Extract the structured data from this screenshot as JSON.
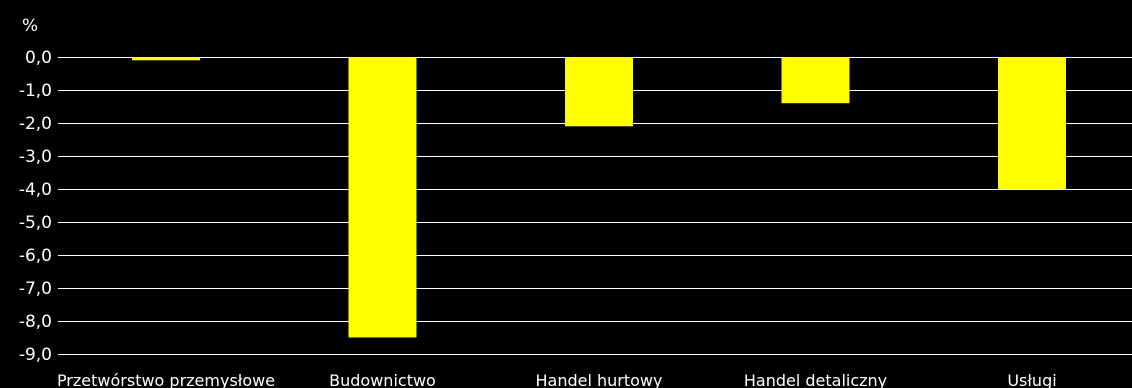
{
  "chart_data": {
    "type": "bar",
    "title": "",
    "xlabel": "",
    "ylabel": "%",
    "ylim": [
      -9.0,
      0.0
    ],
    "yticks": [
      "0,0",
      "-1,0",
      "-2,0",
      "-3,0",
      "-4,0",
      "-5,0",
      "-6,0",
      "-7,0",
      "-8,0",
      "-9,0"
    ],
    "ytick_values": [
      0,
      -1,
      -2,
      -3,
      -4,
      -5,
      -6,
      -7,
      -8,
      -9
    ],
    "categories": [
      "Przetwórstwo przemysłowe",
      "Budownictwo",
      "Handel hurtowy",
      "Handel detaliczny",
      "Usługi"
    ],
    "values": [
      -0.1,
      -8.5,
      -2.1,
      -1.4,
      -4.0
    ],
    "grid": true,
    "legend": "none",
    "colors": {
      "bar": "#ffff00",
      "background": "#000000",
      "text": "#ffffff",
      "grid": "#ffffff"
    }
  }
}
